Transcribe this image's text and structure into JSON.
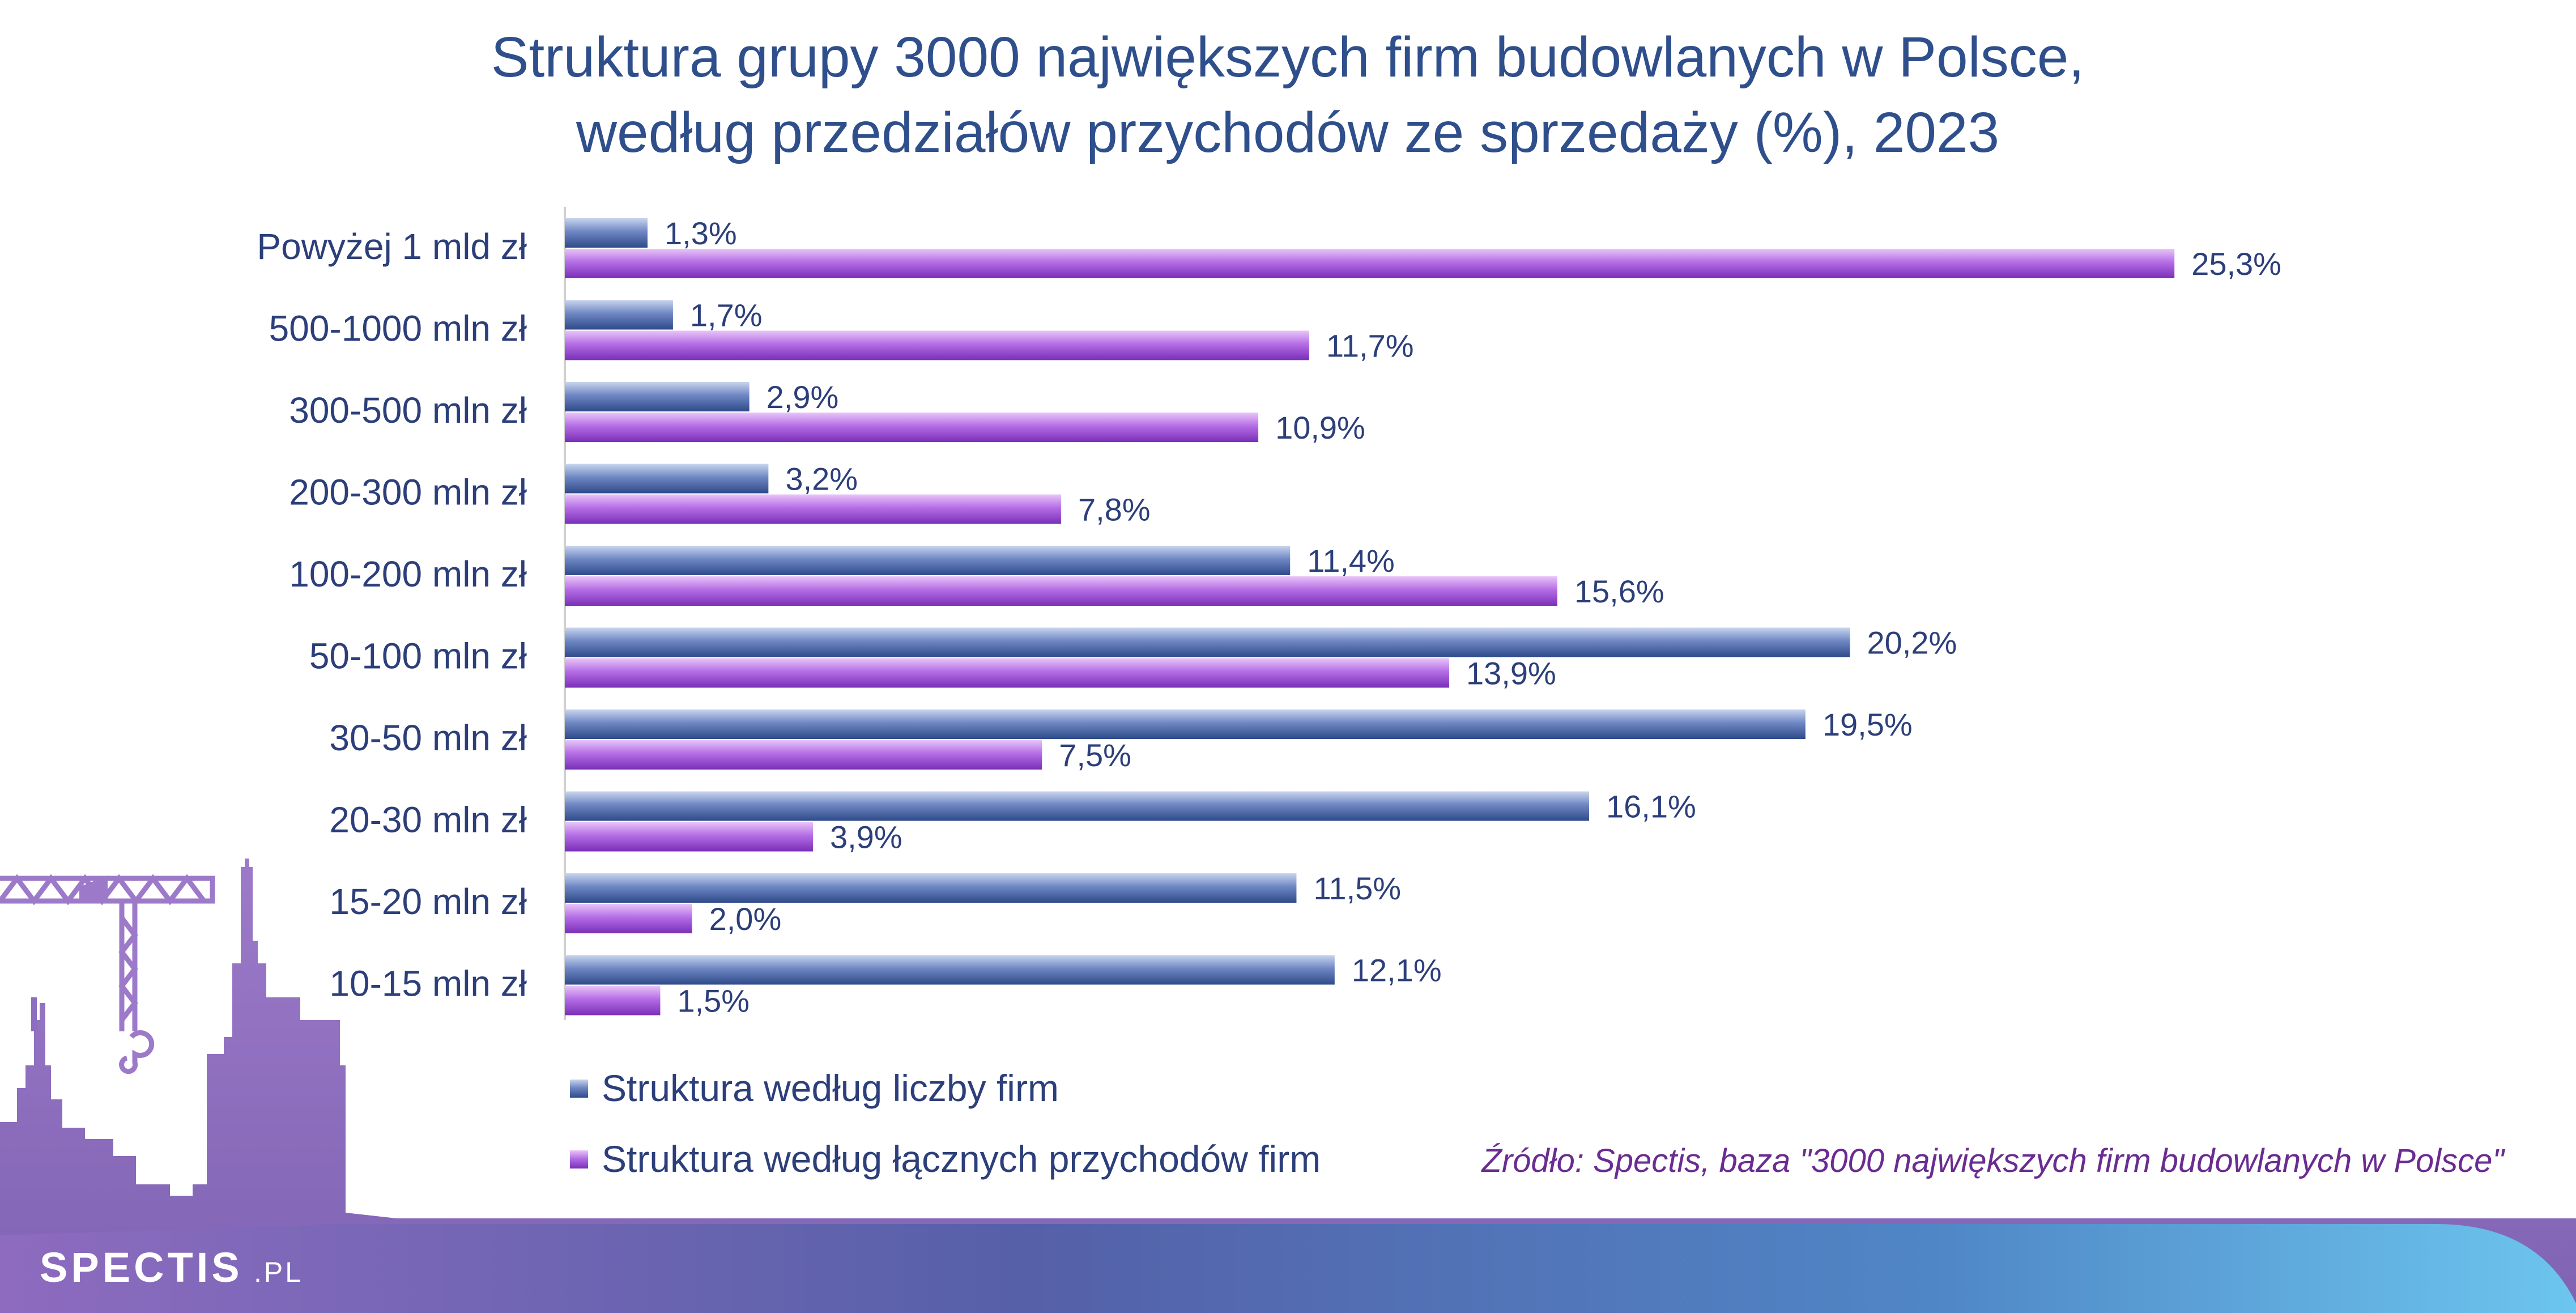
{
  "chart_data": {
    "type": "bar",
    "orientation": "horizontal",
    "title": "Struktura grupy 3000 największych firm budowlanych w Polsce,",
    "subtitle": "według przedziałów przychodów ze sprzedaży (%), 2023",
    "categories": [
      "Powyżej 1 mld zł",
      "500-1000 mln zł",
      "300-500 mln zł",
      "200-300 mln zł",
      "100-200 mln zł",
      "50-100 mln zł",
      "30-50 mln zł",
      "20-30 mln zł",
      "15-20 mln zł",
      "10-15 mln zł"
    ],
    "series": [
      {
        "name": "Struktura według liczby firm",
        "color": "#3f5f9e",
        "values": [
          1.3,
          1.7,
          2.9,
          3.2,
          11.4,
          20.2,
          19.5,
          16.1,
          11.5,
          12.1
        ],
        "labels": [
          "1,3%",
          "1,7%",
          "2,9%",
          "3,2%",
          "11,4%",
          "20,2%",
          "19,5%",
          "16,1%",
          "11,5%",
          "12,1%"
        ]
      },
      {
        "name": "Struktura według łącznych przychodów firm",
        "color": "#9a45cf",
        "values": [
          25.3,
          11.7,
          10.9,
          7.8,
          15.6,
          13.9,
          7.5,
          3.9,
          2.0,
          1.5
        ],
        "labels": [
          "25,3%",
          "11,7%",
          "10,9%",
          "7,8%",
          "15,6%",
          "13,9%",
          "7,5%",
          "3,9%",
          "2,0%",
          "1,5%"
        ]
      }
    ],
    "xlim": [
      0,
      27
    ],
    "grid": false,
    "legend_position": "bottom-left",
    "source": "Źródło: Spectis, baza \"3000 największych firm budowlanych w Polsce\""
  },
  "brand": {
    "logo": "SPECTIS",
    "logo_suffix": ".PL",
    "footer_gradient": [
      "#8e6bbf",
      "#5560a8",
      "#4f86c6",
      "#6cc6ee"
    ]
  }
}
